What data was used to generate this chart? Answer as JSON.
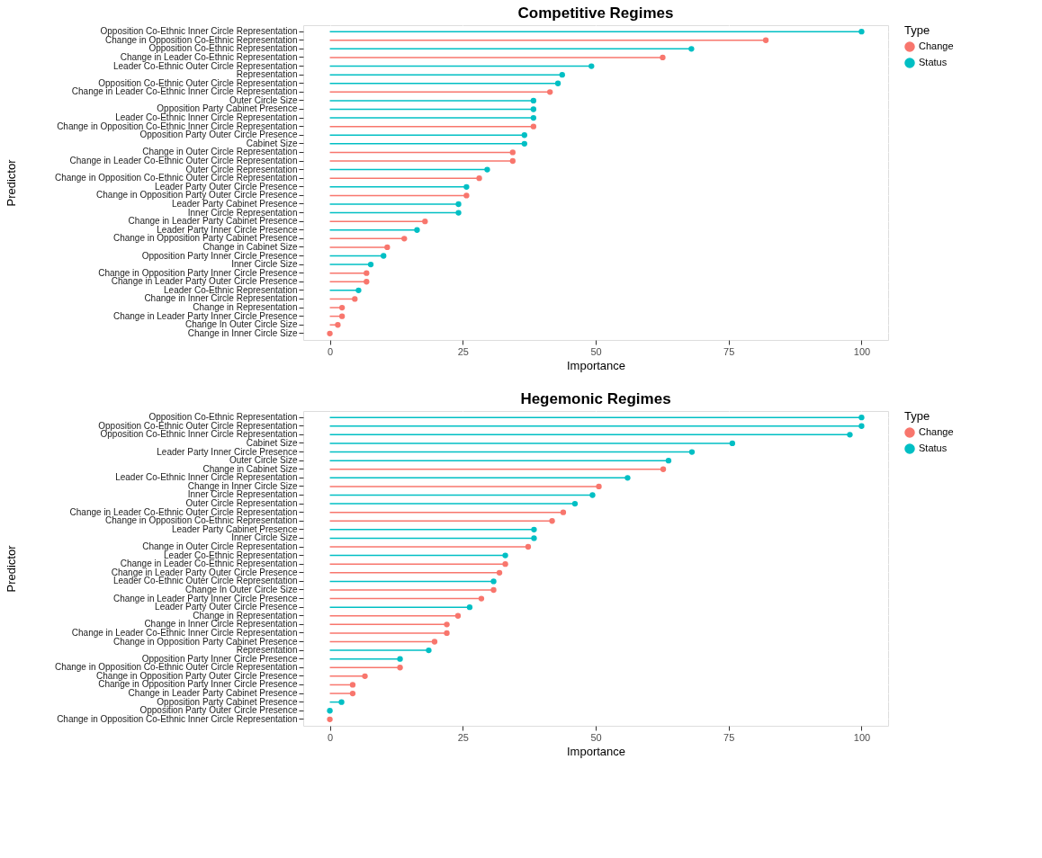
{
  "chart_data": [
    {
      "type": "lollipop",
      "orientation": "horizontal",
      "title": "Competitive Regimes",
      "xlabel": "Importance",
      "ylabel": "Predictor",
      "legend_title": "Type",
      "legend": "right",
      "grid": true,
      "marker": "circle",
      "categories": [
        "Opposition Co-Ethnic Inner Circle Representation",
        "Change in Opposition Co-Ethnic Representation",
        "Opposition Co-Ethnic Representation",
        "Change in Leader Co-Ethnic Representation",
        "Leader Co-Ethnic Outer Circle Representation",
        "Representation",
        "Opposition Co-Ethnic Outer Circle Representation",
        "Change in Leader Co-Ethnic Inner Circle Representation",
        "Outer Circle Size",
        "Opposition Party Cabinet Presence",
        "Leader Co-Ethnic Inner Circle Representation",
        "Change in Opposition Co-Ethnic Inner Circle Representation",
        "Opposition Party Outer Circle Presence",
        "Cabinet Size",
        "Change in Outer Circle Representation",
        "Change in Leader Co-Ethnic Outer Circle Representation",
        "Outer Circle Representation",
        "Change in Opposition Co-Ethnic Outer Circle Representation",
        "Leader Party Outer Circle Presence",
        "Change in Opposition Party Outer Circle Presence",
        "Leader Party Cabinet Presence",
        "Inner Circle Representation",
        "Change in Leader Party Cabinet Presence",
        "Leader Party Inner Circle Presence",
        "Change in Opposition Party Cabinet Presence",
        "Change in Cabinet Size",
        "Opposition Party Inner Circle Presence",
        "Inner Circle Size",
        "Change in Opposition Party Inner Circle Presence",
        "Change in Leader Party Outer Circle Presence",
        "Leader Co-Ethnic Representation",
        "Change in Inner Circle Representation",
        "Change in Representation",
        "Change in Leader Party Inner Circle Presence",
        "Change In Outer Circle Size",
        "Change in Inner Circle Size"
      ],
      "series": [
        {
          "name": "Change",
          "color": "#f8766d",
          "values": [
            null,
            82.0,
            null,
            62.6,
            null,
            null,
            null,
            41.4,
            null,
            null,
            null,
            38.3,
            null,
            null,
            34.4,
            34.4,
            null,
            28.1,
            null,
            25.7,
            null,
            null,
            17.9,
            null,
            14.0,
            10.8,
            null,
            null,
            6.9,
            6.9,
            null,
            4.7,
            2.3,
            2.3,
            1.5,
            0
          ]
        },
        {
          "name": "Status",
          "color": "#00bfc4",
          "values": [
            100,
            null,
            68.0,
            null,
            49.2,
            43.7,
            42.9,
            null,
            38.3,
            38.3,
            38.3,
            null,
            36.6,
            36.6,
            null,
            null,
            29.6,
            null,
            25.7,
            null,
            24.2,
            24.2,
            null,
            16.4,
            null,
            null,
            10.1,
            7.7,
            null,
            null,
            5.4,
            null,
            null,
            null,
            null,
            null
          ]
        }
      ],
      "xlim": [
        -5,
        105
      ],
      "xticks": [
        0,
        25,
        50,
        75,
        100
      ]
    },
    {
      "type": "lollipop",
      "orientation": "horizontal",
      "title": "Hegemonic Regimes",
      "xlabel": "Importance",
      "ylabel": "Predictor",
      "legend_title": "Type",
      "legend": "right",
      "grid": true,
      "marker": "circle",
      "categories": [
        "Opposition Co-Ethnic Representation",
        "Opposition Co-Ethnic Outer Circle Representation",
        "Opposition Co-Ethnic Inner Circle Representation",
        "Cabinet Size",
        "Leader Party Inner Circle Presence",
        "Outer Circle Size",
        "Change in Cabinet Size",
        "Leader Co-Ethnic Inner Circle Representation",
        "Change in Inner Circle Size",
        "Inner Circle Representation",
        "Outer Circle Representation",
        "Change in Leader Co-Ethnic Outer Circle Representation",
        "Change in Opposition Co-Ethnic Representation",
        "Leader Party Cabinet Presence",
        "Inner Circle Size",
        "Change in Outer Circle Representation",
        "Leader Co-Ethnic Representation",
        "Change in Leader Co-Ethnic Representation",
        "Change in Leader Party Outer Circle Presence",
        "Leader Co-Ethnic Outer Circle Representation",
        "Change In Outer Circle Size",
        "Change in Leader Party Inner Circle Presence",
        "Leader Party Outer Circle Presence",
        "Change in Representation",
        "Change in Inner Circle Representation",
        "Change in Leader Co-Ethnic Inner Circle Representation",
        "Change in Opposition Party Cabinet Presence",
        "Representation",
        "Opposition Party Inner Circle Presence",
        "Change in Opposition Co-Ethnic Outer Circle Representation",
        "Change in Opposition Party Outer Circle Presence",
        "Change in Opposition Party Inner Circle Presence",
        "Change in Leader Party Cabinet Presence",
        "Opposition Party Cabinet Presence",
        "Opposition Party Outer Circle Presence",
        "Change in Opposition Co-Ethnic Inner Circle Representation"
      ],
      "series": [
        {
          "name": "Change",
          "color": "#f8766d",
          "values": [
            null,
            null,
            null,
            null,
            null,
            null,
            62.7,
            null,
            50.6,
            null,
            null,
            43.9,
            41.8,
            null,
            null,
            37.3,
            null,
            33.0,
            31.9,
            null,
            30.8,
            28.5,
            null,
            24.1,
            22.0,
            22.0,
            19.7,
            null,
            null,
            13.2,
            6.6,
            4.3,
            4.3,
            null,
            null,
            0
          ]
        },
        {
          "name": "Status",
          "color": "#00bfc4",
          "values": [
            100,
            100,
            97.8,
            75.7,
            68.1,
            63.7,
            null,
            56.0,
            null,
            49.4,
            46.1,
            null,
            null,
            38.4,
            38.4,
            null,
            33.0,
            null,
            null,
            30.8,
            null,
            null,
            26.3,
            null,
            null,
            null,
            null,
            18.6,
            13.2,
            null,
            null,
            null,
            null,
            2.2,
            0,
            null
          ]
        }
      ],
      "xlim": [
        -5,
        105
      ],
      "xticks": [
        0,
        25,
        50,
        75,
        100
      ]
    }
  ]
}
